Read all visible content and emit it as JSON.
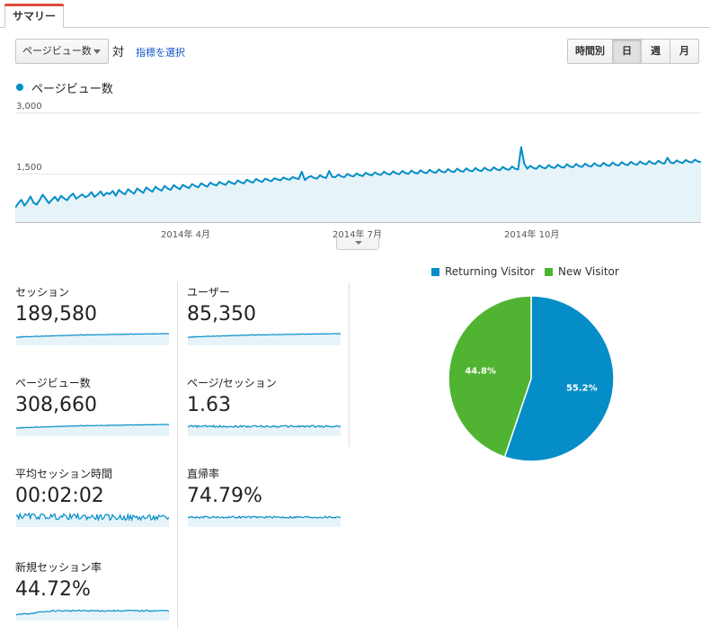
{
  "tab": {
    "label": "サマリー"
  },
  "toolbar": {
    "metric_select": "ページビュー数",
    "vs_label": "対",
    "choose_metric": "指標を選択",
    "granularity": [
      "時間別",
      "日",
      "週",
      "月"
    ],
    "granularity_selected": "日"
  },
  "chart_data": [
    {
      "type": "area",
      "legend": "ページビュー数",
      "color": "#058dc7",
      "y_ticks": [
        "3,000",
        "1,500"
      ],
      "x_ticks": [
        "2014年 4月",
        "2014年 7月",
        "2014年 10月"
      ],
      "ylim": [
        0,
        3000
      ],
      "x_range": [
        "2014-01-01",
        "2014-12-31"
      ],
      "values": [
        395,
        520,
        610,
        450,
        560,
        700,
        530,
        480,
        600,
        750,
        640,
        520,
        610,
        690,
        580,
        720,
        650,
        600,
        710,
        780,
        640,
        700,
        760,
        680,
        730,
        820,
        690,
        760,
        840,
        720,
        800,
        770,
        850,
        720,
        880,
        810,
        760,
        900,
        830,
        780,
        920,
        860,
        800,
        950,
        880,
        830,
        970,
        900,
        860,
        990,
        920,
        880,
        1010,
        950,
        900,
        1020,
        970,
        930,
        1040,
        990,
        950,
        1060,
        1010,
        970,
        1080,
        1030,
        1000,
        1100,
        1050,
        1020,
        1120,
        1070,
        1040,
        1140,
        1090,
        1060,
        1160,
        1110,
        1080,
        1180,
        1130,
        1100,
        1190,
        1150,
        1120,
        1200,
        1170,
        1140,
        1220,
        1180,
        1160,
        1230,
        1200,
        1180,
        1380,
        1150,
        1220,
        1260,
        1210,
        1190,
        1280,
        1230,
        1210,
        1400,
        1240,
        1230,
        1300,
        1250,
        1230,
        1320,
        1270,
        1250,
        1330,
        1280,
        1260,
        1350,
        1300,
        1280,
        1360,
        1310,
        1290,
        1380,
        1320,
        1300,
        1390,
        1330,
        1310,
        1400,
        1340,
        1320,
        1410,
        1350,
        1330,
        1420,
        1360,
        1340,
        1430,
        1370,
        1350,
        1440,
        1380,
        1360,
        1450,
        1390,
        1370,
        1460,
        1400,
        1380,
        1470,
        1410,
        1390,
        1480,
        1420,
        1400,
        1490,
        1430,
        1410,
        1500,
        1440,
        1420,
        1510,
        1450,
        1430,
        1520,
        1460,
        1440,
        2050,
        1600,
        1460,
        1540,
        1480,
        1460,
        1550,
        1490,
        1470,
        1560,
        1500,
        1480,
        1570,
        1510,
        1490,
        1580,
        1520,
        1500,
        1590,
        1530,
        1510,
        1600,
        1540,
        1520,
        1610,
        1550,
        1530,
        1620,
        1560,
        1540,
        1630,
        1570,
        1550,
        1640,
        1580,
        1560,
        1650,
        1590,
        1570,
        1660,
        1600,
        1580,
        1670,
        1610,
        1590,
        1680,
        1620,
        1600,
        1760,
        1630,
        1610,
        1690,
        1640,
        1620,
        1700,
        1650,
        1630,
        1710,
        1660,
        1640
      ]
    },
    {
      "type": "pie",
      "labels": [
        "Returning Visitor",
        "New Visitor"
      ],
      "values": [
        55.2,
        44.8
      ],
      "display": [
        "55.2%",
        "44.8%"
      ],
      "colors": [
        "#058dc7",
        "#50b432"
      ]
    }
  ],
  "tiles": [
    {
      "label": "セッション",
      "value": "189,580"
    },
    {
      "label": "ユーザー",
      "value": "85,350"
    },
    {
      "label": "ページビュー数",
      "value": "308,660"
    },
    {
      "label": "ページ/セッション",
      "value": "1.63"
    },
    {
      "label": "平均セッション時間",
      "value": "00:02:02"
    },
    {
      "label": "直帰率",
      "value": "74.79%"
    },
    {
      "label": "新規セッション率",
      "value": "44.72%"
    }
  ]
}
